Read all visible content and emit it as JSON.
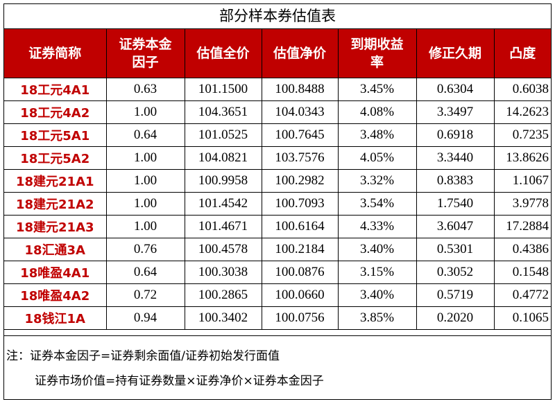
{
  "title": "部分样本券估值表",
  "columns": [
    {
      "label": "证券简称"
    },
    {
      "label": "证券本金因子"
    },
    {
      "label": "估值全价"
    },
    {
      "label": "估值净价"
    },
    {
      "label": "到期收益率"
    },
    {
      "label": "修正久期"
    },
    {
      "label": "凸度"
    }
  ],
  "rows": [
    [
      "18工元4A1",
      "0.63",
      "101.1500",
      "100.8488",
      "3.45%",
      "0.6304",
      "0.6038"
    ],
    [
      "18工元4A2",
      "1.00",
      "104.3651",
      "104.0343",
      "4.08%",
      "3.3497",
      "14.2623"
    ],
    [
      "18工元5A1",
      "0.64",
      "101.0525",
      "100.7645",
      "3.48%",
      "0.6918",
      "0.7235"
    ],
    [
      "18工元5A2",
      "1.00",
      "104.0821",
      "103.7576",
      "4.05%",
      "3.3440",
      "13.8626"
    ],
    [
      "18建元21A1",
      "1.00",
      "100.9958",
      "100.2982",
      "3.32%",
      "0.8383",
      "1.1067"
    ],
    [
      "18建元21A2",
      "1.00",
      "101.4542",
      "100.7093",
      "3.54%",
      "1.7540",
      "3.9778"
    ],
    [
      "18建元21A3",
      "1.00",
      "101.4671",
      "100.6164",
      "4.33%",
      "3.6047",
      "17.2884"
    ],
    [
      "18汇通3A",
      "0.76",
      "100.4578",
      "100.2184",
      "3.40%",
      "0.5301",
      "0.4386"
    ],
    [
      "18唯盈4A1",
      "0.64",
      "100.3038",
      "100.0876",
      "3.15%",
      "0.3052",
      "0.1548"
    ],
    [
      "18唯盈4A2",
      "0.72",
      "100.2865",
      "100.0660",
      "3.40%",
      "0.5719",
      "0.4772"
    ],
    [
      "18钱江1A",
      "0.94",
      "100.3402",
      "100.0756",
      "3.85%",
      "0.2020",
      "0.1065"
    ]
  ],
  "notes": {
    "line1": "注：证券本金因子=证券剩余面值/证券初始发行面值",
    "line2": "证券市场价值=持有证券数量×证券净价×证券本金因子"
  },
  "colors": {
    "header_bg": "#c00000",
    "header_text": "#ffffff",
    "name_text": "#c00000"
  }
}
